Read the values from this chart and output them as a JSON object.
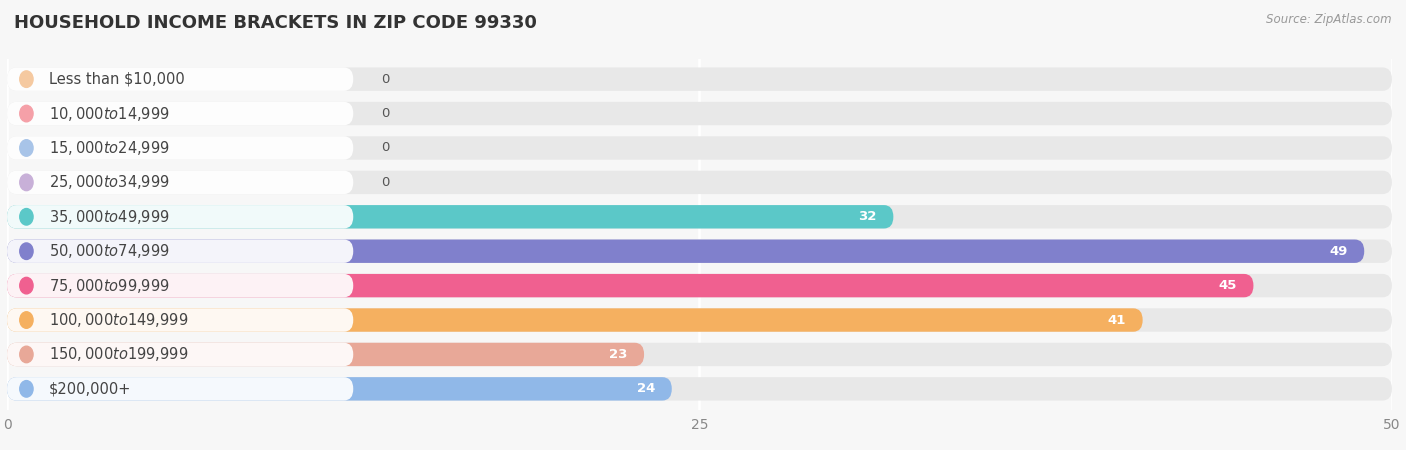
{
  "title": "HOUSEHOLD INCOME BRACKETS IN ZIP CODE 99330",
  "source": "Source: ZipAtlas.com",
  "categories": [
    "Less than $10,000",
    "$10,000 to $14,999",
    "$15,000 to $24,999",
    "$25,000 to $34,999",
    "$35,000 to $49,999",
    "$50,000 to $74,999",
    "$75,000 to $99,999",
    "$100,000 to $149,999",
    "$150,000 to $199,999",
    "$200,000+"
  ],
  "values": [
    0,
    0,
    0,
    0,
    32,
    49,
    45,
    41,
    23,
    24
  ],
  "bar_colors": [
    "#f5c9a0",
    "#f5a0a8",
    "#a8c4e8",
    "#c8b0d8",
    "#5bc8c8",
    "#8080cc",
    "#f06090",
    "#f5b060",
    "#e8a898",
    "#90b8e8"
  ],
  "xlim": [
    0,
    50
  ],
  "xticks": [
    0,
    25,
    50
  ],
  "background_color": "#f7f7f7",
  "bar_background_color": "#e8e8e8",
  "title_fontsize": 13,
  "label_fontsize": 10.5,
  "value_fontsize": 9.5
}
